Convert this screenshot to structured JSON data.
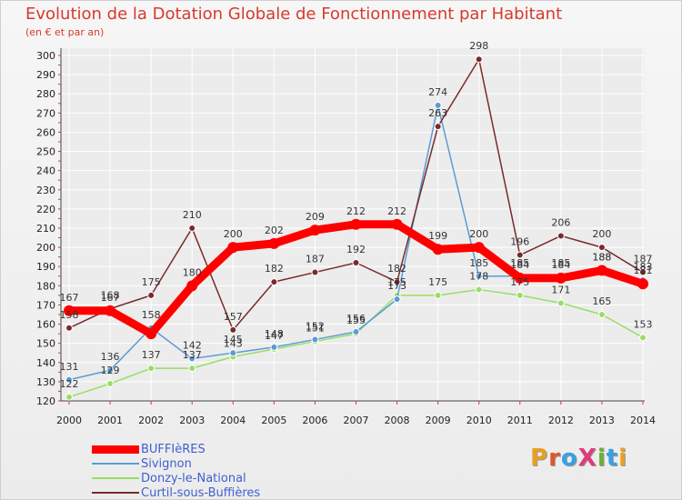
{
  "colors": {
    "background": "#f0f0f0",
    "title": "#d63a2c",
    "legend_text": "#3f5fd0"
  },
  "brand": {
    "text": "ProXiti",
    "letter_colors": [
      "#e8a020",
      "#e0562a",
      "#3aa0e0",
      "#e03a7a",
      "#6ab030",
      "#3aa0e0",
      "#e8a020"
    ]
  },
  "chart_data": {
    "type": "line",
    "title": "Evolution de la Dotation Globale de Fonctionnement par Habitant",
    "subtitle": "(en € et par an)",
    "xlabel": "",
    "ylabel": "",
    "categories": [
      "2000",
      "2001",
      "2002",
      "2003",
      "2004",
      "2005",
      "2006",
      "2007",
      "2008",
      "2009",
      "2010",
      "2011",
      "2012",
      "2013",
      "2014"
    ],
    "ylim": [
      120,
      300
    ],
    "yticks": [
      120,
      130,
      140,
      150,
      160,
      170,
      180,
      190,
      200,
      210,
      220,
      230,
      240,
      250,
      260,
      270,
      280,
      290,
      300
    ],
    "grid": true,
    "legend_position": "bottom-left",
    "series": [
      {
        "name": "BUFFIèRES",
        "color": "#ff0000",
        "values": [
          167,
          167,
          155,
          180,
          200,
          202,
          209,
          212,
          212,
          199,
          200,
          184,
          184,
          188,
          181
        ]
      },
      {
        "name": "Sivignon",
        "color": "#5b9bd5",
        "values": [
          131,
          136,
          158,
          142,
          145,
          148,
          152,
          156,
          173,
          274,
          185,
          185,
          185,
          188,
          183
        ]
      },
      {
        "name": "Donzy-le-National",
        "color": "#99dd66",
        "values": [
          122,
          129,
          137,
          137,
          143,
          147,
          151,
          155,
          175,
          175,
          178,
          175,
          171,
          165,
          153
        ]
      },
      {
        "name": "Curtil-sous-Buffières",
        "color": "#7a2a2a",
        "values": [
          158,
          168,
          175,
          210,
          157,
          182,
          187,
          192,
          182,
          263,
          298,
          196,
          206,
          200,
          187
        ]
      }
    ],
    "data_labels": [
      {
        "series": 0,
        "values": [
          "167",
          "167",
          "",
          "180",
          "200",
          "202",
          "209",
          "212",
          "212",
          "199",
          "200",
          "184",
          "184",
          "188",
          "181"
        ]
      },
      {
        "series": 1,
        "values": [
          "131",
          "136",
          "158",
          "142",
          "145",
          "148",
          "152",
          "156",
          "173",
          "274",
          "185",
          "185",
          "185",
          "188",
          "183"
        ]
      },
      {
        "series": 2,
        "values": [
          "122",
          "129",
          "137",
          "137",
          "143",
          "147",
          "151",
          "155",
          "175",
          "175",
          "178",
          "175",
          "171",
          "165",
          "153"
        ]
      },
      {
        "series": 3,
        "values": [
          "158",
          "168",
          "175",
          "210",
          "157",
          "182",
          "187",
          "192",
          "182",
          "263",
          "298",
          "196",
          "206",
          "200",
          "187"
        ]
      }
    ]
  }
}
